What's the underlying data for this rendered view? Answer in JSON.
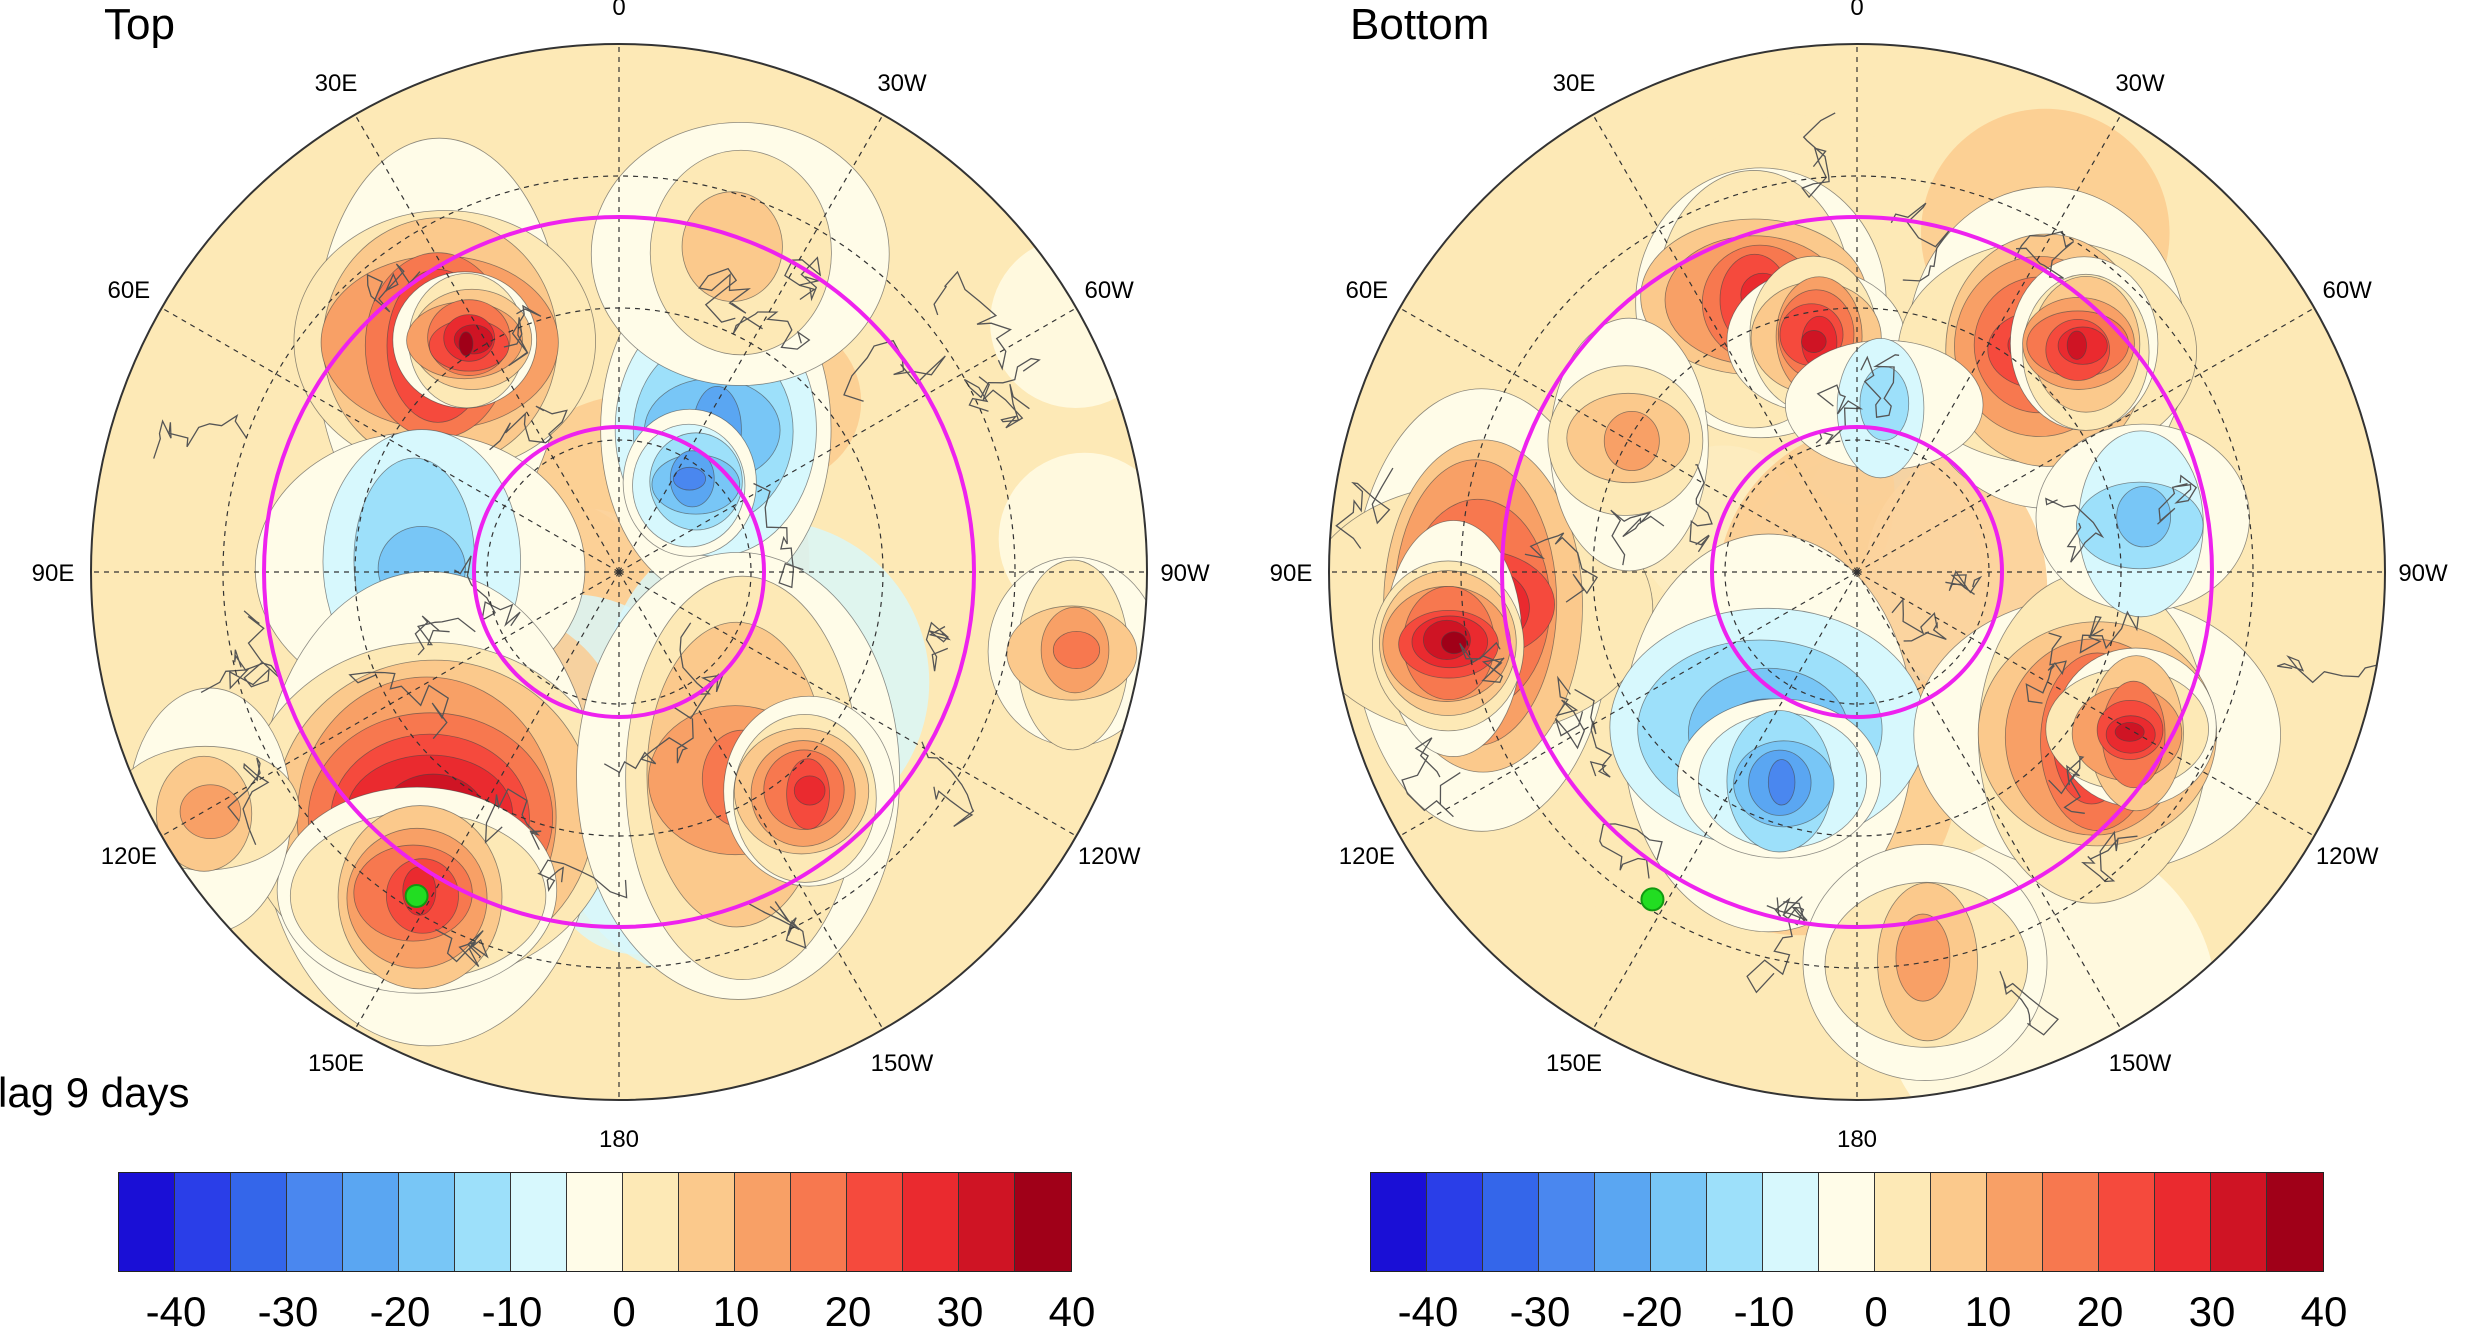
{
  "panels": [
    {
      "id": "left",
      "title": "Top",
      "lag_label": "lag 9 days",
      "point_color": "#22dd22"
    },
    {
      "id": "right",
      "title": "Bottom",
      "lag_label": "",
      "point_color": "#22dd22"
    }
  ],
  "longitude_labels": [
    "0",
    "30W",
    "60W",
    "90W",
    "120W",
    "150W",
    "180",
    "150E",
    "120E",
    "90E",
    "60E",
    "30E"
  ],
  "colorbar": {
    "colors": [
      "#1a0fd6",
      "#2a3ee8",
      "#3466ea",
      "#4a87ef",
      "#5aa6f2",
      "#78c6f6",
      "#9de0fa",
      "#d7f8fd",
      "#fffce8",
      "#fde9b6",
      "#fbc98c",
      "#f8a066",
      "#f7784f",
      "#f54a3d",
      "#ea2a2f",
      "#cf1424",
      "#a00018"
    ],
    "tick_labels": [
      "-40",
      "-30",
      "-20",
      "-10",
      "0",
      "10",
      "20",
      "30",
      "40"
    ]
  },
  "circle_color": "#ee22ee"
}
